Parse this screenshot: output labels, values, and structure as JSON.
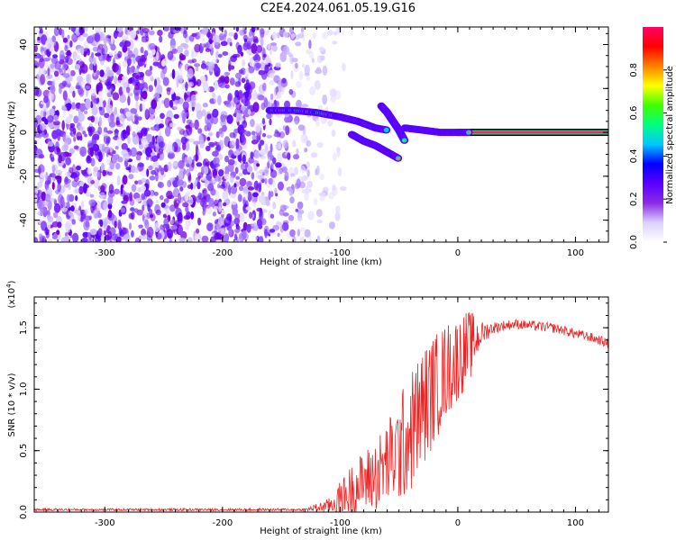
{
  "title": "C2E4.2024.061.05.19.G16",
  "colors": {
    "axis": "#000000",
    "snr_line": "#ee2222",
    "flat_band": "#ff2255",
    "colormap": [
      "#ffffff",
      "#dcd0ff",
      "#8a2be2",
      "#5a00ff",
      "#0000ff",
      "#00c8ff",
      "#00ff80",
      "#40ff00",
      "#ffff00",
      "#ff8000",
      "#ff0000",
      "#ff0066"
    ]
  },
  "chart_data": [
    {
      "type": "heatmap",
      "title": "C2E4.2024.061.05.19.G16",
      "xlabel": "Height of straight line (km)",
      "ylabel": "Frequency (Hz)",
      "xlim": [
        -360,
        128
      ],
      "ylim": [
        -50,
        48
      ],
      "xticks": [
        -300,
        -200,
        -100,
        0,
        100
      ],
      "yticks": [
        -40,
        -20,
        0,
        20,
        40
      ],
      "noise_region_x": [
        -360,
        -115
      ],
      "features": [
        {
          "label": "",
          "x": [
            -160,
            -140,
            -120,
            -100,
            -85,
            -70,
            -60
          ],
          "y": [
            10,
            10,
            9,
            7,
            5,
            2,
            1
          ]
        },
        {
          "label": "",
          "x": [
            -90,
            -80,
            -70,
            -60,
            -50
          ],
          "y": [
            -1,
            -4,
            -6,
            -9,
            -12
          ]
        },
        {
          "label": "",
          "x": [
            -65,
            -60,
            -55,
            -50,
            -45
          ],
          "y": [
            12,
            9,
            5,
            1,
            -4
          ]
        },
        {
          "label": "",
          "x": [
            -45,
            -30,
            -15,
            0,
            10
          ],
          "y": [
            2,
            1,
            0,
            0,
            0
          ]
        }
      ],
      "flat_band": {
        "x": [
          0,
          128
        ],
        "y": 0
      },
      "colorbar": {
        "label": "Normalized spectral amplitude",
        "range": [
          0.0,
          1.0
        ],
        "ticks": [
          "0.0",
          "0.2",
          "0.4",
          "0.6",
          "0.8"
        ]
      }
    },
    {
      "type": "line",
      "xlabel": "Height of straight line (km)",
      "ylabel": "SNR (10 * v/v)",
      "scale_label": "(x10",
      "scale_exp": "4",
      "scale_close": ")",
      "xlim": [
        -360,
        128
      ],
      "ylim": [
        0.0,
        1.75
      ],
      "xticks": [
        -300,
        -200,
        -100,
        0,
        100
      ],
      "yticks": [
        "0.0",
        "0.5",
        "1.0",
        "1.5"
      ],
      "series": [
        {
          "x": [
            -360,
            -300,
            -200,
            -130,
            -110,
            -100,
            -90,
            -80,
            -70,
            -60,
            -50,
            -40,
            -30,
            -20,
            -10,
            0,
            10,
            20,
            30,
            40,
            50,
            60,
            70,
            80,
            90,
            100,
            110,
            120,
            128
          ],
          "y": [
            0.02,
            0.02,
            0.02,
            0.02,
            0.05,
            0.1,
            0.18,
            0.25,
            0.3,
            0.4,
            0.5,
            0.65,
            0.85,
            1.0,
            1.15,
            1.25,
            1.35,
            1.45,
            1.5,
            1.52,
            1.53,
            1.52,
            1.51,
            1.5,
            1.48,
            1.45,
            1.43,
            1.4,
            1.37
          ],
          "noise_amp": [
            0.01,
            0.01,
            0.01,
            0.01,
            0.06,
            0.15,
            0.22,
            0.25,
            0.3,
            0.35,
            0.45,
            0.5,
            0.5,
            0.45,
            0.4,
            0.35,
            0.3,
            0.1,
            0.05,
            0.04,
            0.04,
            0.04,
            0.04,
            0.04,
            0.04,
            0.04,
            0.04,
            0.04,
            0.04
          ]
        }
      ]
    }
  ]
}
